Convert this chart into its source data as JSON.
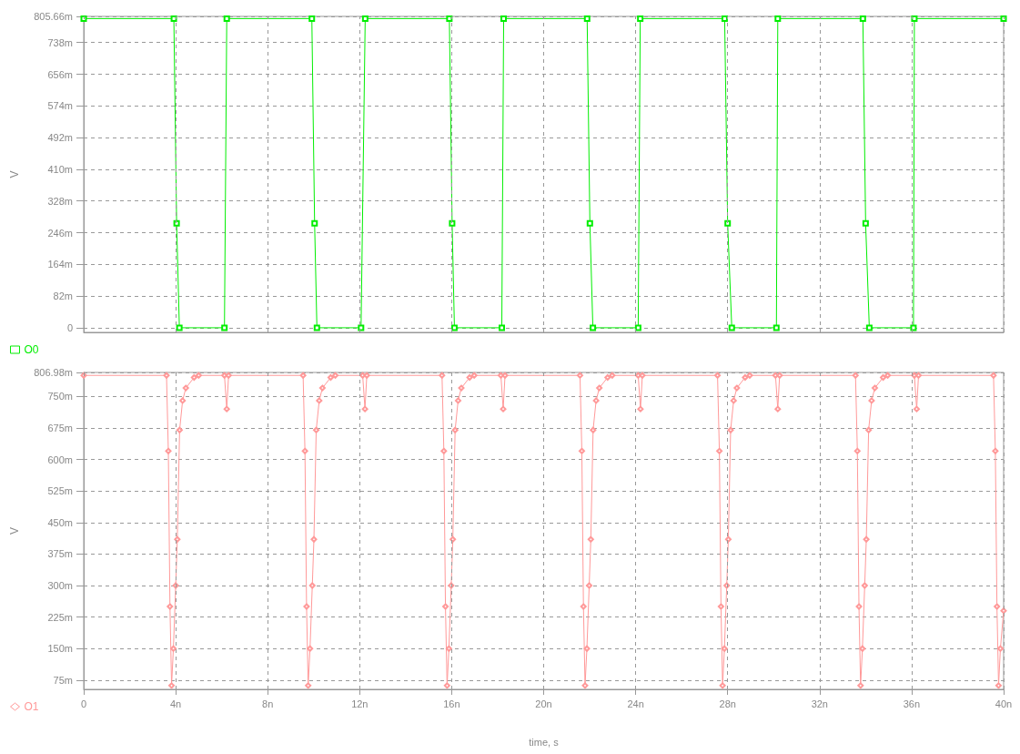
{
  "chart_data": [
    {
      "type": "line",
      "ylabel": "V",
      "marker": "square",
      "line_style": "solid",
      "grid": true,
      "legend": "bottom left",
      "tick_labels": "y",
      "xlim": [
        0,
        40
      ],
      "xticks": [
        {
          "value": 0,
          "label": null
        },
        {
          "value": 4,
          "label": null
        },
        {
          "value": 8,
          "label": null
        },
        {
          "value": 12,
          "label": null
        },
        {
          "value": 16,
          "label": null
        },
        {
          "value": 20,
          "label": null
        },
        {
          "value": 24,
          "label": null
        },
        {
          "value": 28,
          "label": null
        },
        {
          "value": 32,
          "label": null
        },
        {
          "value": 36,
          "label": null
        },
        {
          "value": 40,
          "label": null
        }
      ],
      "ylim": [
        -12,
        805.66
      ],
      "yticks": [
        0,
        {
          "value": 82,
          "label": "82m"
        },
        {
          "value": 164,
          "label": "164m"
        },
        {
          "value": 246,
          "label": "246m"
        },
        {
          "value": 328,
          "label": "328m"
        },
        {
          "value": 410,
          "label": "410m"
        },
        {
          "value": 492,
          "label": "492m"
        },
        {
          "value": 574,
          "label": "574m"
        },
        {
          "value": 656,
          "label": "656m"
        },
        {
          "value": 738,
          "label": "738m"
        },
        {
          "value": 805.66,
          "label": "805.66m"
        }
      ],
      "series": [
        {
          "name": "O0",
          "color": "#00ee00",
          "x": [
            0,
            3.92,
            4.04,
            4.16,
            6.12,
            6.22,
            9.92,
            10.04,
            10.14,
            12.06,
            12.24,
            15.9,
            16.02,
            16.12,
            18.18,
            18.26,
            21.89,
            22.01,
            22.14,
            24.11,
            24.2,
            27.87,
            28.0,
            28.18,
            30.12,
            30.18,
            33.88,
            34.0,
            34.16,
            36.08,
            36.12,
            40
          ],
          "values": [
            800,
            800,
            270,
            0,
            0,
            800,
            800,
            270,
            0,
            0,
            800,
            800,
            270,
            0,
            0,
            800,
            800,
            270,
            0,
            0,
            800,
            800,
            270,
            0,
            0,
            800,
            800,
            270,
            0,
            0,
            800,
            800
          ]
        }
      ]
    },
    {
      "type": "line",
      "ylabel": "V",
      "xlabel": "time, s",
      "marker": "diamond",
      "line_style": "solid",
      "grid": true,
      "legend": "bottom left",
      "xlim": [
        0,
        40
      ],
      "xticks": [
        0,
        {
          "value": 4,
          "label": "4n"
        },
        {
          "value": 8,
          "label": "8n"
        },
        {
          "value": 12,
          "label": "12n"
        },
        {
          "value": 16,
          "label": "16n"
        },
        {
          "value": 20,
          "label": "20n"
        },
        {
          "value": 24,
          "label": "24n"
        },
        {
          "value": 28,
          "label": "28n"
        },
        {
          "value": 32,
          "label": "32n"
        },
        {
          "value": 36,
          "label": "36n"
        },
        {
          "value": 40,
          "label": "40n"
        }
      ],
      "ylim": [
        53,
        806.98
      ],
      "yticks": [
        {
          "value": 75,
          "label": "75m"
        },
        {
          "value": 150,
          "label": "150m"
        },
        {
          "value": 225,
          "label": "225m"
        },
        {
          "value": 300,
          "label": "300m"
        },
        {
          "value": 375,
          "label": "375m"
        },
        {
          "value": 450,
          "label": "450m"
        },
        {
          "value": 525,
          "label": "525m"
        },
        {
          "value": 600,
          "label": "600m"
        },
        {
          "value": 675,
          "label": "675m"
        },
        {
          "value": 750,
          "label": "750m"
        },
        {
          "value": 806.98,
          "label": "806.98m"
        }
      ],
      "series": [
        {
          "name": "O1",
          "color": "#ff9999",
          "x": [
            0,
            3.6,
            3.68,
            3.75,
            3.82,
            3.9,
            4.0,
            4.07,
            4.17,
            4.3,
            4.44,
            4.8,
            5.0,
            6.12,
            6.22,
            6.3,
            9.54,
            9.62,
            9.69,
            9.76,
            9.84,
            9.94,
            10.01,
            10.11,
            10.24,
            10.38,
            10.74,
            10.94,
            12.13,
            12.23,
            12.31,
            15.58,
            15.66,
            15.73,
            15.8,
            15.88,
            15.98,
            16.05,
            16.15,
            16.28,
            16.42,
            16.78,
            16.98,
            18.14,
            18.24,
            18.32,
            21.58,
            21.66,
            21.73,
            21.8,
            21.88,
            21.98,
            22.05,
            22.15,
            22.28,
            22.42,
            22.78,
            22.98,
            24.11,
            24.21,
            24.29,
            27.56,
            27.64,
            27.71,
            27.78,
            27.86,
            27.96,
            28.03,
            28.13,
            28.26,
            28.4,
            28.76,
            28.96,
            30.08,
            30.18,
            30.26,
            33.56,
            33.64,
            33.71,
            33.78,
            33.86,
            33.96,
            34.03,
            34.13,
            34.26,
            34.4,
            34.76,
            34.96,
            36.12,
            36.22,
            36.3,
            39.56,
            39.64,
            39.71,
            39.78,
            39.86,
            40
          ],
          "values": [
            800,
            800,
            620,
            250,
            62,
            150,
            300,
            410,
            670,
            740,
            770,
            795,
            800,
            800,
            720,
            800,
            800,
            620,
            250,
            62,
            150,
            300,
            410,
            670,
            740,
            770,
            795,
            800,
            800,
            720,
            800,
            800,
            620,
            250,
            62,
            150,
            300,
            410,
            670,
            740,
            770,
            795,
            800,
            800,
            720,
            800,
            800,
            620,
            250,
            62,
            150,
            300,
            410,
            670,
            740,
            770,
            795,
            800,
            800,
            720,
            800,
            800,
            620,
            250,
            62,
            150,
            300,
            410,
            670,
            740,
            770,
            795,
            800,
            800,
            720,
            800,
            800,
            620,
            250,
            62,
            150,
            300,
            410,
            670,
            740,
            770,
            795,
            800,
            800,
            720,
            800,
            800,
            620,
            250,
            62,
            150,
            240
          ]
        }
      ]
    }
  ]
}
